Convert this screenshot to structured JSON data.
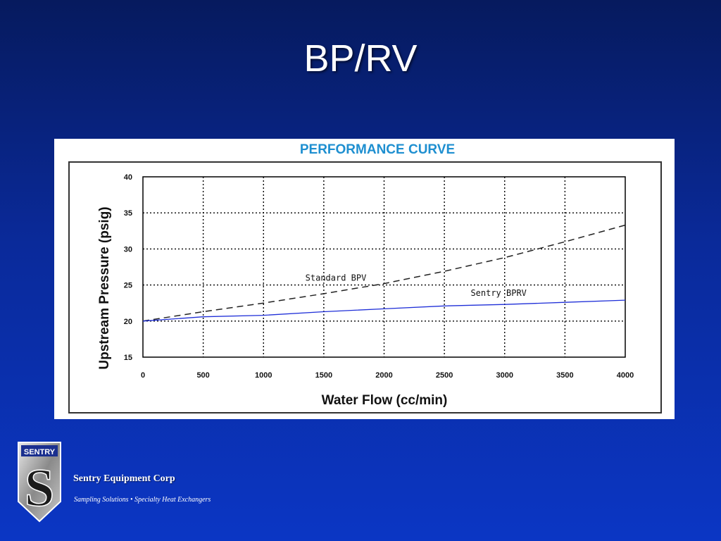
{
  "slide": {
    "title": "BP/RV"
  },
  "colors": {
    "background_top": "#061a5e",
    "background_bottom": "#0b36c4",
    "chart_title": "#1e8fd0",
    "sentry_line": "#1f2fd8",
    "standard_line": "#222222"
  },
  "footer": {
    "logo_text": "SENTRY",
    "logo_letter": "S",
    "company": "Sentry Equipment Corp",
    "tagline": "Sampling Solutions • Specialty Heat Exchangers"
  },
  "chart_data": {
    "type": "line",
    "title": "PERFORMANCE CURVE",
    "xlabel": "Water Flow (cc/min)",
    "ylabel": "Upstream Pressure (psig)",
    "xlim": [
      0,
      4000
    ],
    "ylim": [
      15,
      40
    ],
    "xticks": [
      0,
      500,
      1000,
      1500,
      2000,
      2500,
      3000,
      3500,
      4000
    ],
    "yticks": [
      15,
      20,
      25,
      30,
      35,
      40
    ],
    "grid": true,
    "grid_style": "dotted",
    "series": [
      {
        "name": "Standard BPV",
        "style": "dashed",
        "x": [
          0,
          500,
          1000,
          1500,
          2000,
          2500,
          3000,
          3500,
          4000
        ],
        "y": [
          20.0,
          21.3,
          22.5,
          23.8,
          25.2,
          26.9,
          28.8,
          31.0,
          33.3
        ]
      },
      {
        "name": "Sentry BPRV",
        "style": "solid",
        "x": [
          0,
          500,
          1000,
          1500,
          2000,
          2500,
          3000,
          3500,
          4000
        ],
        "y": [
          20.0,
          20.6,
          20.8,
          21.3,
          21.7,
          22.1,
          22.3,
          22.6,
          22.9
        ]
      }
    ]
  }
}
